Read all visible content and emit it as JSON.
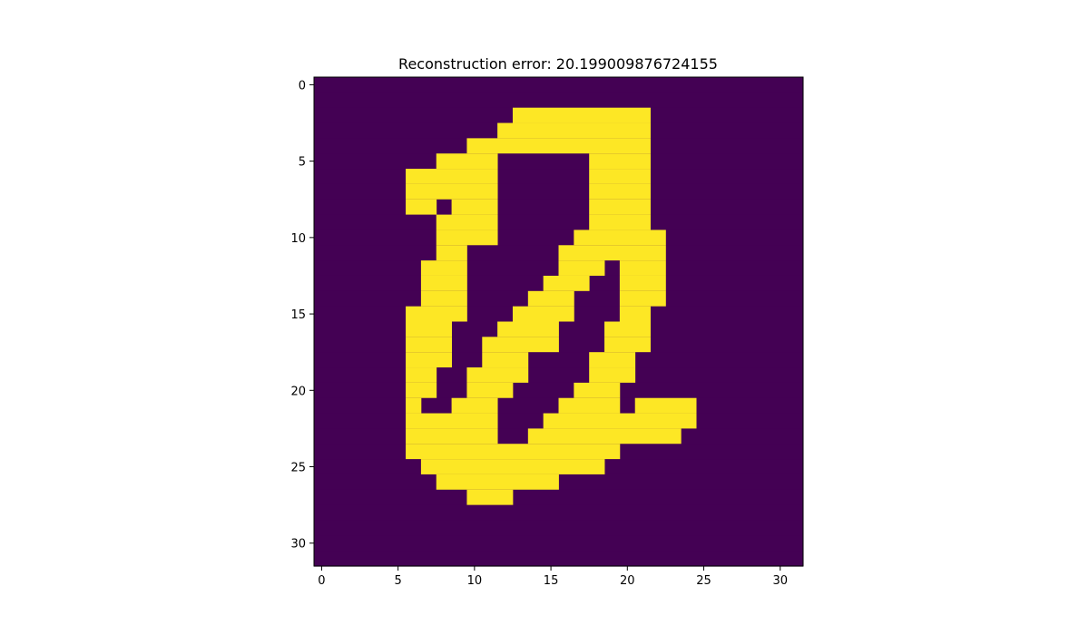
{
  "chart_data": {
    "type": "heatmap",
    "title": "Reconstruction error: 20.199009876724155",
    "xlabel": "",
    "ylabel": "",
    "xlim": [
      -0.5,
      31.5
    ],
    "ylim": [
      31.5,
      -0.5
    ],
    "y_axis_inverted": true,
    "grid": false,
    "legend": "none",
    "colormap": "viridis",
    "colors": {
      "low": "#440154",
      "high": "#fde725"
    },
    "x_ticks": [
      0,
      5,
      10,
      15,
      20,
      25,
      30
    ],
    "y_ticks": [
      0,
      5,
      10,
      15,
      20,
      25,
      30
    ],
    "x_tick_labels": [
      "0",
      "5",
      "10",
      "15",
      "20",
      "25",
      "30"
    ],
    "y_tick_labels": [
      "0",
      "5",
      "10",
      "15",
      "20",
      "25",
      "30"
    ],
    "rows": 32,
    "cols": 32,
    "on_ranges": [
      [],
      [],
      [
        [
          13,
          21
        ]
      ],
      [
        [
          12,
          21
        ]
      ],
      [
        [
          10,
          21
        ]
      ],
      [
        [
          8,
          11
        ],
        [
          18,
          21
        ]
      ],
      [
        [
          6,
          11
        ],
        [
          18,
          21
        ]
      ],
      [
        [
          6,
          11
        ],
        [
          18,
          21
        ]
      ],
      [
        [
          6,
          7
        ],
        [
          9,
          11
        ],
        [
          18,
          21
        ]
      ],
      [
        [
          8,
          11
        ],
        [
          18,
          21
        ]
      ],
      [
        [
          8,
          11
        ],
        [
          17,
          22
        ]
      ],
      [
        [
          8,
          9
        ],
        [
          16,
          22
        ]
      ],
      [
        [
          7,
          9
        ],
        [
          16,
          18
        ],
        [
          20,
          22
        ]
      ],
      [
        [
          7,
          9
        ],
        [
          15,
          17
        ],
        [
          20,
          22
        ]
      ],
      [
        [
          7,
          9
        ],
        [
          14,
          16
        ],
        [
          20,
          22
        ]
      ],
      [
        [
          6,
          9
        ],
        [
          13,
          16
        ],
        [
          20,
          21
        ]
      ],
      [
        [
          6,
          8
        ],
        [
          12,
          15
        ],
        [
          19,
          21
        ]
      ],
      [
        [
          6,
          8
        ],
        [
          11,
          15
        ],
        [
          19,
          21
        ]
      ],
      [
        [
          6,
          8
        ],
        [
          11,
          13
        ],
        [
          18,
          20
        ]
      ],
      [
        [
          6,
          7
        ],
        [
          10,
          13
        ],
        [
          18,
          20
        ]
      ],
      [
        [
          6,
          7
        ],
        [
          10,
          12
        ],
        [
          17,
          19
        ]
      ],
      [
        [
          6,
          6
        ],
        [
          9,
          11
        ],
        [
          16,
          19
        ],
        [
          21,
          24
        ]
      ],
      [
        [
          6,
          11
        ],
        [
          15,
          24
        ]
      ],
      [
        [
          6,
          11
        ],
        [
          14,
          23
        ]
      ],
      [
        [
          6,
          19
        ]
      ],
      [
        [
          7,
          18
        ]
      ],
      [
        [
          8,
          15
        ]
      ],
      [
        [
          10,
          12
        ]
      ],
      [],
      [],
      [],
      []
    ]
  }
}
